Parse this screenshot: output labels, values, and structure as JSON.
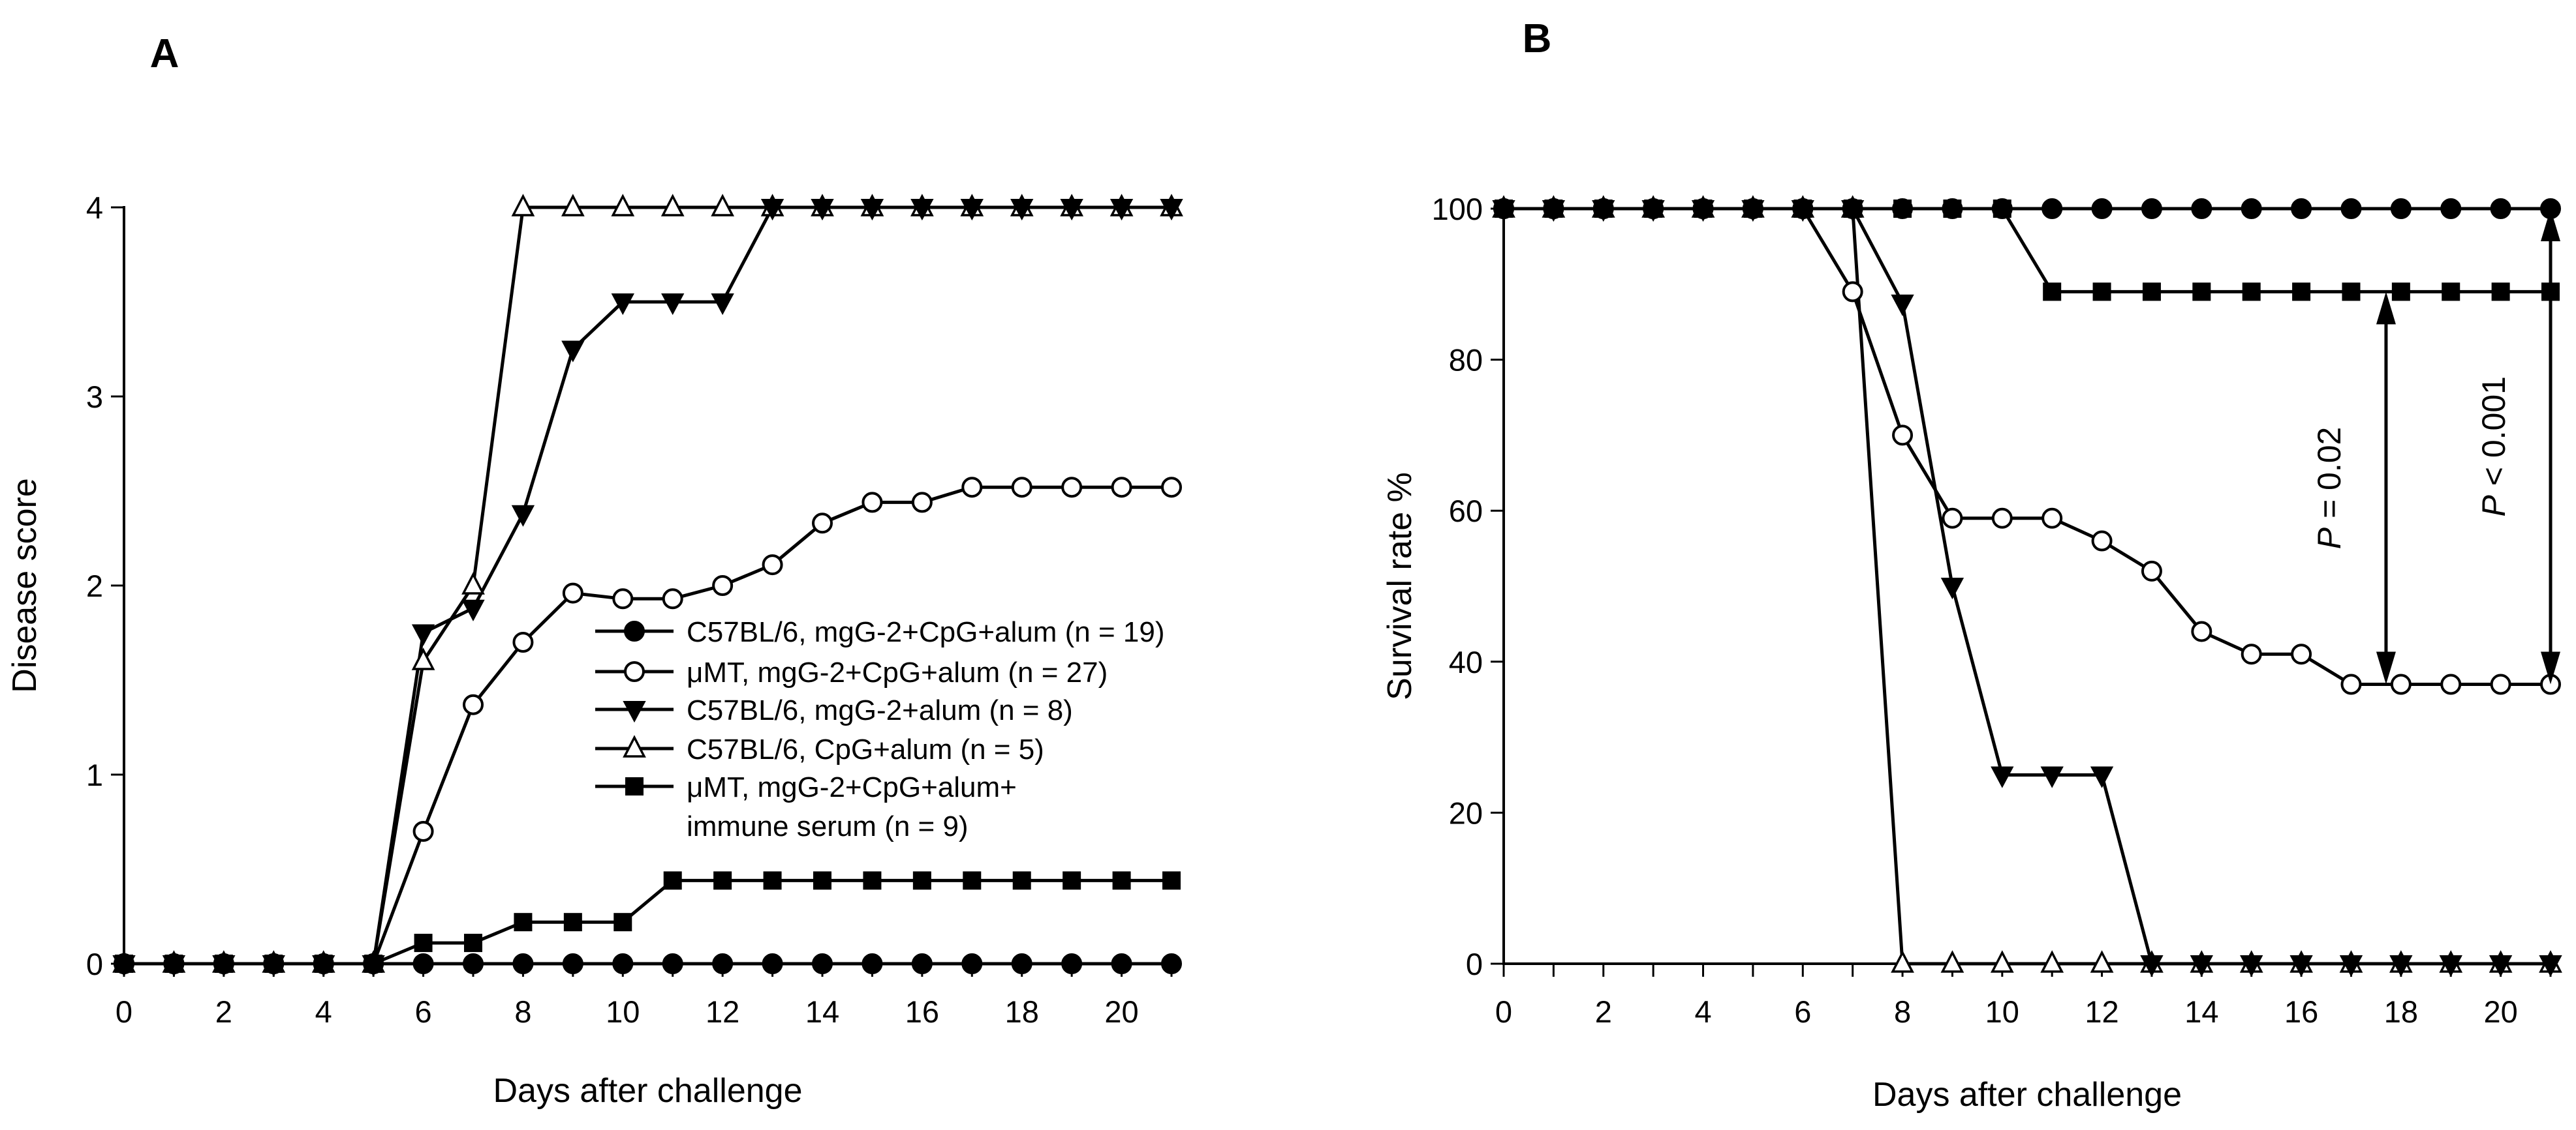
{
  "figure": {
    "panel_a_label": "A",
    "panel_b_label": "B"
  },
  "chart_data": [
    {
      "panel": "A",
      "type": "line",
      "title": "",
      "xlabel": "Days after challenge",
      "ylabel": "Disease score",
      "xlim": [
        0,
        21
      ],
      "ylim": [
        0,
        4
      ],
      "xticks": [
        0,
        2,
        4,
        6,
        8,
        10,
        12,
        14,
        16,
        18,
        20
      ],
      "yticks": [
        0,
        1,
        2,
        3,
        4
      ],
      "x": [
        0,
        1,
        2,
        3,
        4,
        5,
        6,
        7,
        8,
        9,
        10,
        11,
        12,
        13,
        14,
        15,
        16,
        17,
        18,
        19,
        20,
        21
      ],
      "legend": "center-right",
      "series": [
        {
          "name": "C57BL/6, mgG-2+CpG+alum (n = 19)",
          "marker": "filled-circle",
          "values": [
            0,
            0,
            0,
            0,
            0,
            0,
            0,
            0,
            0,
            0,
            0,
            0,
            0,
            0,
            0,
            0,
            0,
            0,
            0,
            0,
            0,
            0
          ]
        },
        {
          "name": "μMT, mgG-2+CpG+alum (n = 27)",
          "marker": "open-circle",
          "values": [
            0,
            0,
            0,
            0,
            0,
            0,
            0.7,
            1.37,
            1.7,
            1.96,
            1.93,
            1.93,
            2.0,
            2.11,
            2.33,
            2.44,
            2.44,
            2.52,
            2.52,
            2.52,
            2.52,
            2.52
          ]
        },
        {
          "name": "C57BL/6, mgG-2+alum (n = 8)",
          "marker": "filled-triangle-down",
          "values": [
            0,
            0,
            0,
            0,
            0,
            0,
            1.75,
            1.88,
            2.38,
            3.25,
            3.5,
            3.5,
            3.5,
            4,
            4,
            4,
            4,
            4,
            4,
            4,
            4,
            4
          ]
        },
        {
          "name": "C57BL/6, CpG+alum (n = 5)",
          "marker": "open-triangle-up",
          "values": [
            0,
            0,
            0,
            0,
            0,
            0,
            1.6,
            2.0,
            4,
            4,
            4,
            4,
            4,
            4,
            4,
            4,
            4,
            4,
            4,
            4,
            4,
            4
          ]
        },
        {
          "name": "μMT, mgG-2+CpG+alum+",
          "name_line2": "immune serum (n = 9)",
          "marker": "filled-square",
          "values": [
            0,
            0,
            0,
            0,
            0,
            0,
            0.11,
            0.11,
            0.22,
            0.22,
            0.22,
            0.44,
            0.44,
            0.44,
            0.44,
            0.44,
            0.44,
            0.44,
            0.44,
            0.44,
            0.44,
            0.44
          ]
        }
      ]
    },
    {
      "panel": "B",
      "type": "line",
      "title": "",
      "xlabel": "Days after challenge",
      "ylabel": "Survival rate %",
      "xlim": [
        0,
        21
      ],
      "ylim": [
        0,
        100
      ],
      "xticks": [
        0,
        2,
        4,
        6,
        8,
        10,
        12,
        14,
        16,
        18,
        20
      ],
      "yticks": [
        0,
        20,
        40,
        60,
        80,
        100
      ],
      "x": [
        0,
        1,
        2,
        3,
        4,
        5,
        6,
        7,
        8,
        9,
        10,
        11,
        12,
        13,
        14,
        15,
        16,
        17,
        18,
        19,
        20,
        21
      ],
      "series": [
        {
          "name": "C57BL/6, mgG-2+CpG+alum (n = 19)",
          "marker": "filled-circle",
          "values": [
            100,
            100,
            100,
            100,
            100,
            100,
            100,
            100,
            100,
            100,
            100,
            100,
            100,
            100,
            100,
            100,
            100,
            100,
            100,
            100,
            100,
            100
          ]
        },
        {
          "name": "μMT, mgG-2+CpG+alum (n = 27)",
          "marker": "open-circle",
          "values": [
            100,
            100,
            100,
            100,
            100,
            100,
            100,
            89,
            70,
            59,
            59,
            59,
            56,
            52,
            44,
            41,
            41,
            37,
            37,
            37,
            37,
            37
          ]
        },
        {
          "name": "C57BL/6, mgG-2+alum (n = 8)",
          "marker": "filled-triangle-down",
          "values": [
            100,
            100,
            100,
            100,
            100,
            100,
            100,
            100,
            87.5,
            50,
            25,
            25,
            25,
            0,
            0,
            0,
            0,
            0,
            0,
            0,
            0,
            0
          ]
        },
        {
          "name": "C57BL/6, CpG+alum (n = 5)",
          "marker": "open-triangle-up",
          "values": [
            100,
            100,
            100,
            100,
            100,
            100,
            100,
            100,
            0,
            0,
            0,
            0,
            0,
            0,
            0,
            0,
            0,
            0,
            0,
            0,
            0,
            0
          ]
        },
        {
          "name": "μMT, mgG-2+CpG+alum+ immune serum (n = 9)",
          "marker": "filled-square",
          "values": [
            100,
            100,
            100,
            100,
            100,
            100,
            100,
            100,
            100,
            100,
            100,
            89,
            89,
            89,
            89,
            89,
            89,
            89,
            89,
            89,
            89,
            89
          ]
        }
      ],
      "annotations": [
        {
          "name": "p-value-1",
          "p": "P",
          "rest": " = 0.02",
          "x": 17.7,
          "y_from": 89,
          "y_to": 37
        },
        {
          "name": "p-value-2",
          "p": "P",
          "rest": " < 0.001",
          "x": 21,
          "y_from": 100,
          "y_to": 37
        }
      ]
    }
  ]
}
